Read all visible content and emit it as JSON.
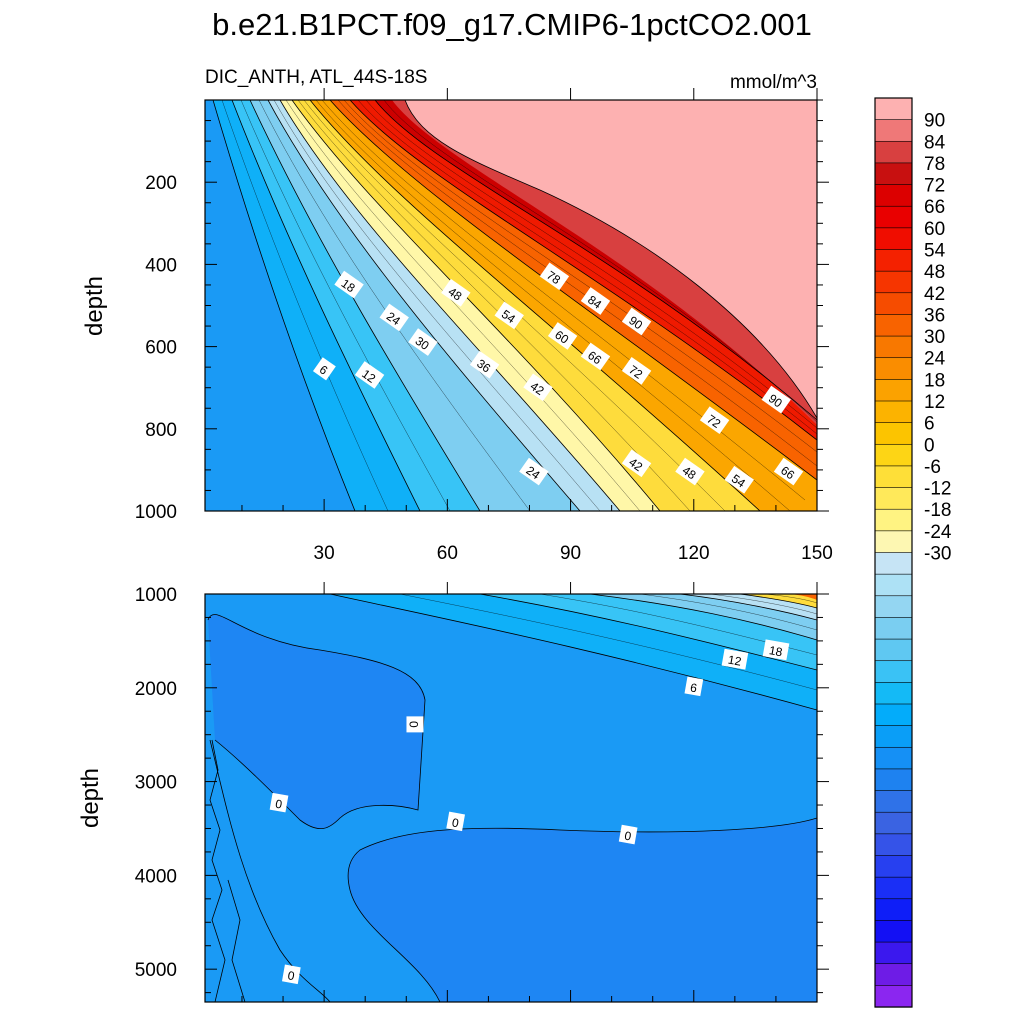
{
  "chart_data": [
    {
      "type": "heatmap",
      "title": "b.e21.B1PCT.f09_g17.CMIP6-1pctCO2.001",
      "left_string": "DIC_ANTH, ATL_44S-18S",
      "right_string": "mmol/m^3",
      "ylabel": "depth",
      "xlim": [
        1,
        150
      ],
      "ylim": [
        1000,
        0
      ],
      "xticks": [
        30,
        60,
        90,
        120,
        150
      ],
      "yticks": [
        200,
        400,
        600,
        800,
        1000
      ],
      "contour_labels": [
        {
          "text": "18",
          "x": 36,
          "y": 450
        },
        {
          "text": "24",
          "x": 47,
          "y": 530
        },
        {
          "text": "30",
          "x": 54,
          "y": 590
        },
        {
          "text": "6",
          "x": 30,
          "y": 655
        },
        {
          "text": "12",
          "x": 41,
          "y": 670
        },
        {
          "text": "48",
          "x": 62,
          "y": 470
        },
        {
          "text": "54",
          "x": 75,
          "y": 525
        },
        {
          "text": "36",
          "x": 69,
          "y": 645
        },
        {
          "text": "60",
          "x": 88,
          "y": 575
        },
        {
          "text": "42",
          "x": 82,
          "y": 700
        },
        {
          "text": "78",
          "x": 86,
          "y": 430
        },
        {
          "text": "84",
          "x": 96,
          "y": 490
        },
        {
          "text": "66",
          "x": 96,
          "y": 625
        },
        {
          "text": "90",
          "x": 106,
          "y": 540
        },
        {
          "text": "72",
          "x": 106,
          "y": 660
        },
        {
          "text": "72",
          "x": 125,
          "y": 780
        },
        {
          "text": "90",
          "x": 140,
          "y": 730
        },
        {
          "text": "24",
          "x": 81,
          "y": 905
        },
        {
          "text": "42",
          "x": 106,
          "y": 885
        },
        {
          "text": "48",
          "x": 119,
          "y": 905
        },
        {
          "text": "54",
          "x": 131,
          "y": 925
        },
        {
          "text": "66",
          "x": 143,
          "y": 905
        }
      ]
    },
    {
      "type": "heatmap",
      "ylabel": "depth",
      "xlim": [
        1,
        150
      ],
      "ylim": [
        5350,
        1000
      ],
      "yticks": [
        1000,
        2000,
        3000,
        4000,
        5000
      ],
      "contour_labels": [
        {
          "text": "18",
          "x": 140,
          "y": 1600
        },
        {
          "text": "12",
          "x": 130,
          "y": 1700
        },
        {
          "text": "6",
          "x": 120,
          "y": 1990
        },
        {
          "text": "0",
          "x": 52,
          "y": 2390
        },
        {
          "text": "0",
          "x": 19,
          "y": 3230
        },
        {
          "text": "0",
          "x": 62,
          "y": 3430
        },
        {
          "text": "0",
          "x": 104,
          "y": 3570
        },
        {
          "text": "0",
          "x": 22,
          "y": 5060
        }
      ]
    }
  ],
  "colorbar": {
    "labels": [
      "90",
      "84",
      "78",
      "72",
      "66",
      "60",
      "54",
      "48",
      "42",
      "36",
      "30",
      "24",
      "18",
      "12",
      "6",
      "0",
      "-6",
      "-12",
      "-18",
      "-24",
      "-30"
    ],
    "colors": [
      "#fdb1b1",
      "#ef7878",
      "#d84040",
      "#c81010",
      "#dc0000",
      "#e90000",
      "#f00d00",
      "#f42100",
      "#f63500",
      "#f64c00",
      "#f86300",
      "#f87800",
      "#fa8d00",
      "#fba200",
      "#fcb300",
      "#fcc400",
      "#fdd515",
      "#fedf38",
      "#ffe95a",
      "#fff382",
      "#fdf7b2",
      "#c6e4f5",
      "#ade1f5",
      "#94d6f2",
      "#7acef1",
      "#5fc8f2",
      "#3ac2f5",
      "#14baf6",
      "#03acfa",
      "#0a9ef7",
      "#1590f5",
      "#1e82f0",
      "#2f72e8",
      "#3a63e2",
      "#3553e8",
      "#2740f0",
      "#1a2ff6",
      "#0e1ef8",
      "#1310f4",
      "#3b18ee",
      "#6e1ce6",
      "#8b26f0"
    ]
  },
  "colors": {
    "top_zero": "#1a9af5",
    "top_6": "#0fb0f8",
    "top_12": "#38c4f6",
    "top_18": "#7ecef1",
    "top_24": "#b8e1f4",
    "top_30": "#fff7a8",
    "top_36": "#fedc3c",
    "top_48": "#fba600",
    "top_60": "#f86300",
    "top_72": "#ef1a00",
    "top_84": "#cc0000",
    "top_90": "#fdb1b1",
    "bottom_base": "#1a9af5",
    "bottom_neg": "#1e86f3"
  }
}
